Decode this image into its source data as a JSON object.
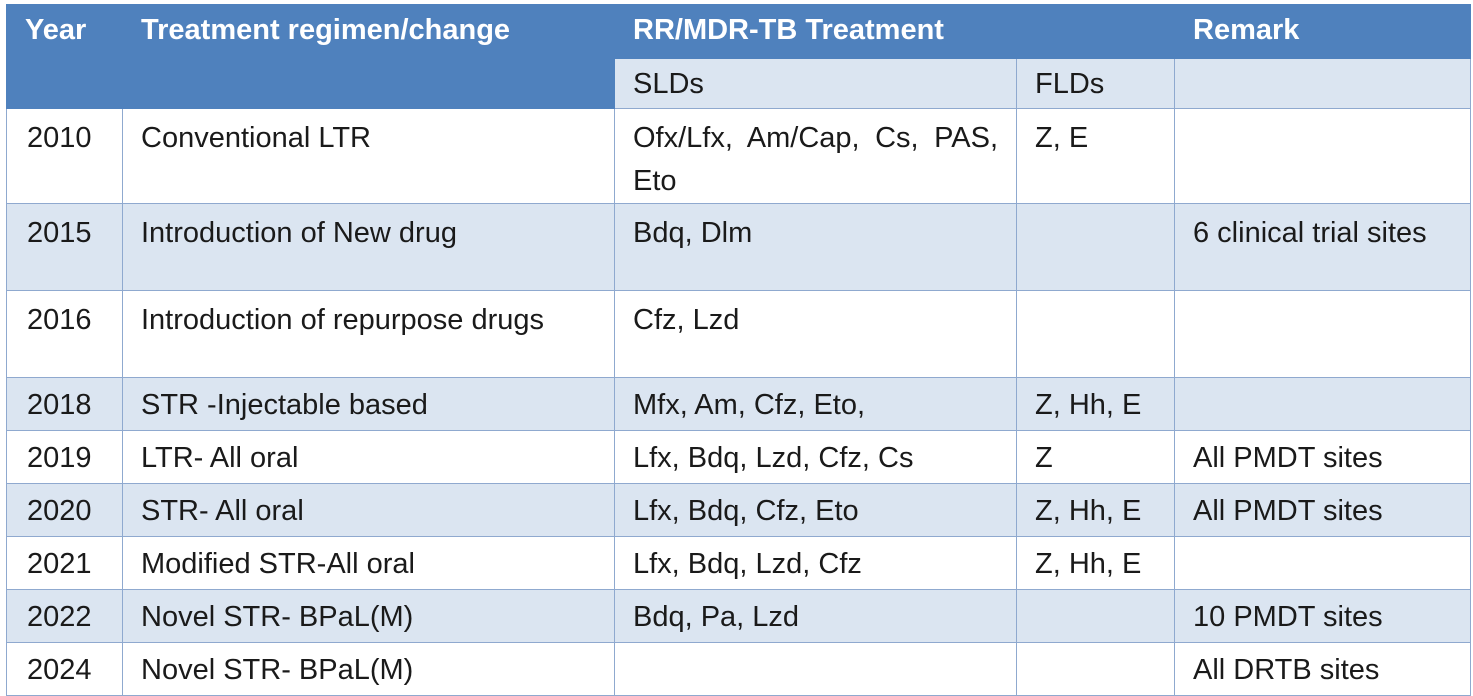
{
  "table": {
    "headers": {
      "year": "Year",
      "regimen": "Treatment regimen/change",
      "treatment": "RR/MDR-TB Treatment",
      "remark": "Remark",
      "slds": "SLDs",
      "flds": "FLDs"
    },
    "rows": [
      {
        "year": "2010",
        "regimen": "Conventional LTR",
        "slds": "Ofx/Lfx, Am/Cap, Cs, PAS, Eto",
        "flds": "Z, E",
        "remark": ""
      },
      {
        "year": "2015",
        "regimen": "Introduction of New drug",
        "slds": "Bdq, Dlm",
        "flds": "",
        "remark": "6 clinical trial sites"
      },
      {
        "year": "2016",
        "regimen": "Introduction of repurpose drugs",
        "slds": "Cfz, Lzd",
        "flds": "",
        "remark": ""
      },
      {
        "year": "2018",
        "regimen": "STR -Injectable based",
        "slds": "Mfx, Am, Cfz, Eto,",
        "flds": "Z, Hh, E",
        "remark": ""
      },
      {
        "year": "2019",
        "regimen": "LTR- All oral",
        "slds": "Lfx, Bdq, Lzd, Cfz, Cs",
        "flds": "Z",
        "remark": "All PMDT sites"
      },
      {
        "year": "2020",
        "regimen": "STR- All oral",
        "slds": "Lfx, Bdq, Cfz, Eto",
        "flds": "Z, Hh, E",
        "remark": "All PMDT sites"
      },
      {
        "year": "2021",
        "regimen": "Modified STR-All oral",
        "slds": "Lfx, Bdq, Lzd, Cfz",
        "flds": "Z, Hh, E",
        "remark": ""
      },
      {
        "year": "2022",
        "regimen": "Novel STR- BPaL(M)",
        "slds": "Bdq, Pa, Lzd",
        "flds": "",
        "remark": "10 PMDT sites"
      },
      {
        "year": "2024",
        "regimen": "Novel STR- BPaL(M)",
        "slds": "",
        "flds": "",
        "remark": "All DRTB sites"
      }
    ]
  },
  "colors": {
    "header_bg": "#4f81bd",
    "header_text": "#ffffff",
    "band_bg": "#dbe5f1",
    "border": "#8fa9cf"
  }
}
